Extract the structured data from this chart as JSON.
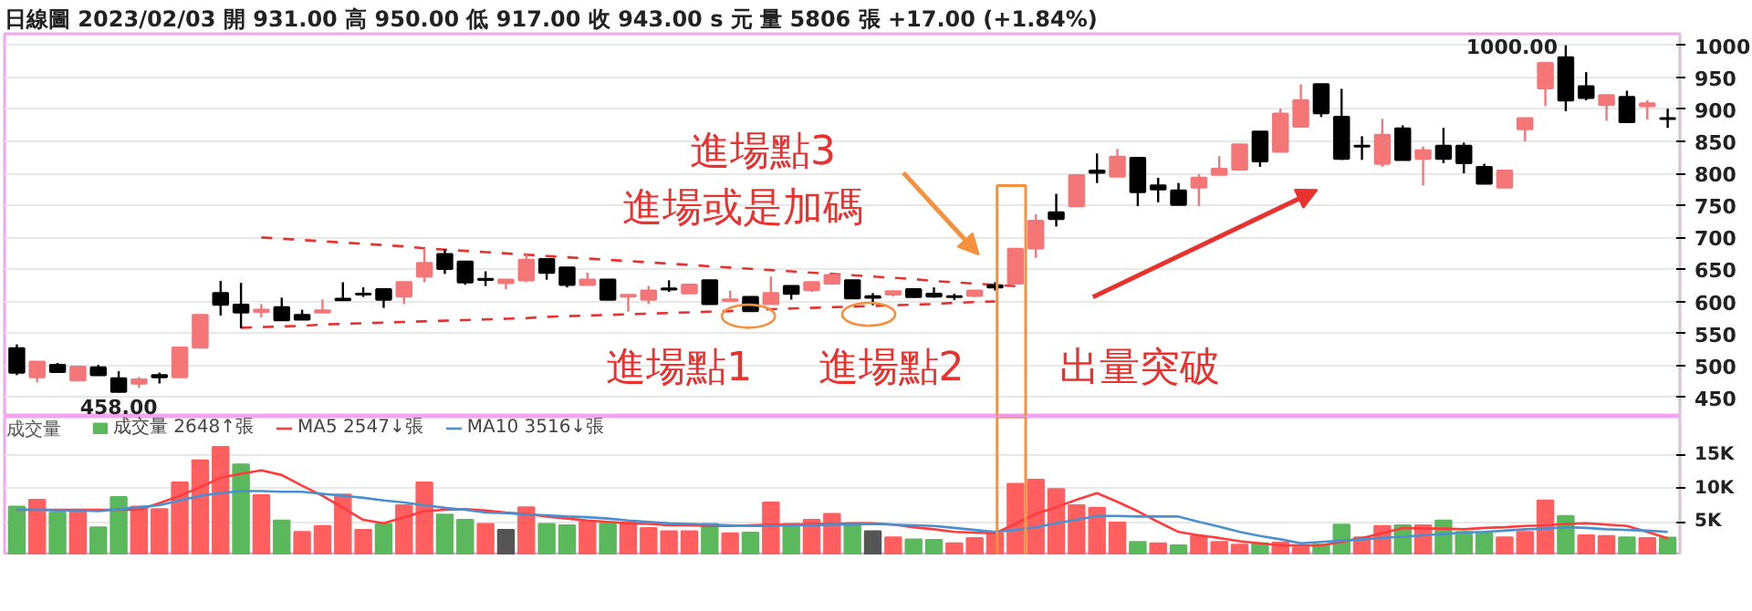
{
  "chart_data": [
    {
      "type": "candlestick",
      "title": "日線圖  2023/02/03  開 931.00  高 950.00  低 917.00  收 943.00 s 元  量 5806 張  +17.00 (+1.84%)",
      "categories": [
        null,
        null,
        null,
        null,
        null,
        null,
        null,
        null,
        null,
        null,
        null,
        null,
        null,
        null,
        null,
        null,
        null,
        null,
        null,
        null,
        null,
        null,
        null,
        null,
        null,
        null,
        null,
        null,
        null,
        null,
        null,
        null,
        null,
        null,
        null,
        null,
        null,
        null,
        null,
        null,
        null,
        null,
        null,
        null,
        null,
        null,
        null,
        null,
        null,
        null,
        null,
        null,
        null,
        null,
        null,
        null,
        null,
        null,
        null,
        null,
        null,
        null,
        null,
        null,
        null,
        null,
        null,
        null,
        null,
        null,
        null,
        null,
        null,
        null,
        null,
        null,
        null,
        null,
        null,
        null,
        null,
        null
      ],
      "ohlc": [
        [
          527,
          533,
          485,
          489
        ],
        [
          482,
          506,
          474,
          506
        ],
        [
          501,
          504,
          489,
          490
        ],
        [
          477,
          498,
          476,
          498
        ],
        [
          497,
          501,
          484,
          485
        ],
        [
          480,
          491,
          458,
          459
        ],
        [
          472,
          482,
          465,
          478
        ],
        [
          485,
          489,
          472,
          482
        ],
        [
          482,
          528,
          482,
          528
        ],
        [
          528,
          579,
          527,
          579
        ],
        [
          613,
          632,
          578,
          595
        ],
        [
          595,
          629,
          558,
          583
        ],
        [
          584,
          596,
          575,
          587
        ],
        [
          591,
          606,
          571,
          571
        ],
        [
          579,
          587,
          572,
          572
        ],
        [
          583,
          603,
          583,
          586
        ],
        [
          604,
          630,
          602,
          602
        ],
        [
          612,
          622,
          607,
          611
        ],
        [
          619,
          619,
          590,
          603
        ],
        [
          608,
          630,
          596,
          630
        ],
        [
          639,
          683,
          630,
          660
        ],
        [
          674,
          681,
          643,
          651
        ],
        [
          662,
          662,
          626,
          630
        ],
        [
          635,
          647,
          624,
          634
        ],
        [
          629,
          634,
          619,
          634
        ],
        [
          633,
          674,
          630,
          665
        ],
        [
          666,
          666,
          634,
          645
        ],
        [
          653,
          653,
          622,
          626
        ],
        [
          626,
          645,
          626,
          634
        ],
        [
          634,
          634,
          602,
          603
        ],
        [
          608,
          610,
          584,
          610
        ],
        [
          603,
          624,
          596,
          617
        ],
        [
          620,
          633,
          615,
          619
        ],
        [
          613,
          628,
          613,
          626
        ],
        [
          633,
          633,
          596,
          596
        ],
        [
          601,
          617,
          600,
          603
        ],
        [
          607,
          607,
          584,
          585
        ],
        [
          596,
          639,
          596,
          613
        ],
        [
          624,
          624,
          603,
          612
        ],
        [
          618,
          630,
          615,
          630
        ],
        [
          628,
          641,
          626,
          641
        ],
        [
          633,
          633,
          605,
          605
        ],
        [
          608,
          613,
          594,
          606
        ],
        [
          611,
          616,
          608,
          616
        ],
        [
          619,
          619,
          606,
          607
        ],
        [
          612,
          622,
          606,
          608
        ],
        [
          608,
          612,
          602,
          607
        ],
        [
          609,
          617,
          607,
          617
        ],
        [
          625,
          630,
          617,
          622
        ],
        [
          628,
          682,
          628,
          682
        ],
        [
          683,
          736,
          668,
          726
        ],
        [
          739,
          768,
          717,
          729
        ],
        [
          749,
          797,
          749,
          797
        ],
        [
          804,
          831,
          785,
          801
        ],
        [
          795,
          838,
          795,
          826
        ],
        [
          824,
          824,
          749,
          771
        ],
        [
          781,
          793,
          755,
          775
        ],
        [
          773,
          785,
          751,
          751
        ],
        [
          778,
          799,
          749,
          793
        ],
        [
          798,
          827,
          798,
          807
        ],
        [
          806,
          845,
          806,
          845
        ],
        [
          865,
          865,
          810,
          819
        ],
        [
          834,
          901,
          834,
          893
        ],
        [
          873,
          939,
          873,
          914
        ],
        [
          939,
          939,
          888,
          894
        ],
        [
          888,
          932,
          821,
          823
        ],
        [
          843,
          858,
          821,
          842
        ],
        [
          815,
          885,
          810,
          860
        ],
        [
          870,
          875,
          821,
          821
        ],
        [
          823,
          842,
          781,
          836
        ],
        [
          843,
          871,
          816,
          823
        ],
        [
          843,
          848,
          800,
          816
        ],
        [
          810,
          815,
          784,
          784
        ],
        [
          778,
          804,
          778,
          804
        ],
        [
          869,
          886,
          850,
          886
        ],
        [
          933,
          972,
          905,
          972
        ],
        [
          981,
          1000,
          897,
          914
        ],
        [
          936,
          958,
          914,
          918
        ],
        [
          907,
          922,
          882,
          922
        ],
        [
          919,
          929,
          880,
          880
        ],
        [
          905,
          914,
          884,
          909
        ],
        [
          886,
          901,
          871,
          885
        ]
      ],
      "colors": [
        "#000000",
        "#f47676",
        "#000000",
        "#f47676",
        "#000000",
        "#000000",
        "#f47676",
        "#000000",
        "#f47676",
        "#f47676",
        "#000000",
        "#000000",
        "#f47676",
        "#000000",
        "#000000",
        "#f47676",
        "#000000",
        "#000000",
        "#000000",
        "#f47676",
        "#f47676",
        "#000000",
        "#000000",
        "#000000",
        "#f47676",
        "#f47676",
        "#000000",
        "#000000",
        "#f47676",
        "#000000",
        "#f47676",
        "#f47676",
        "#000000",
        "#f47676",
        "#000000",
        "#f47676",
        "#000000",
        "#f47676",
        "#000000",
        "#f47676",
        "#f47676",
        "#000000",
        "#000000",
        "#f47676",
        "#000000",
        "#000000",
        "#000000",
        "#f47676",
        "#000000",
        "#f47676",
        "#f47676",
        "#000000",
        "#f47676",
        "#000000",
        "#f47676",
        "#000000",
        "#000000",
        "#000000",
        "#f47676",
        "#f47676",
        "#f47676",
        "#000000",
        "#f47676",
        "#f47676",
        "#000000",
        "#000000",
        "#000000",
        "#f47676",
        "#000000",
        "#f47676",
        "#000000",
        "#000000",
        "#000000",
        "#f47676",
        "#f47676",
        "#f47676",
        "#000000",
        "#000000",
        "#f47676",
        "#000000",
        "#f47676",
        "#000000"
      ],
      "ylim": [
        420,
        1018
      ],
      "yticks": [
        450,
        500,
        550,
        600,
        650,
        700,
        750,
        800,
        850,
        900,
        950,
        1000
      ],
      "grid": "y",
      "series": [
        {
          "type": "line",
          "color": "#e8322e",
          "line_style": "dashed",
          "values": [
            null,
            null,
            null,
            null,
            null,
            null,
            null,
            null,
            null,
            null,
            null,
            null,
            700,
            698,
            696,
            694,
            692,
            690,
            688,
            686,
            683,
            681,
            679,
            677,
            675,
            673,
            671,
            669,
            667,
            665,
            663,
            661,
            659,
            657,
            655,
            653,
            651,
            649,
            647,
            645,
            643,
            641,
            639,
            637,
            635,
            632,
            630,
            628,
            626,
            624,
            null,
            null,
            null,
            null,
            null,
            null,
            null,
            null,
            null,
            null,
            null,
            null,
            null,
            null,
            null,
            null,
            null,
            null,
            null,
            null,
            null,
            null,
            null,
            null,
            null,
            null,
            null,
            null,
            null,
            null,
            null,
            null
          ]
        },
        {
          "type": "line",
          "color": "#e8322e",
          "line_style": "dashed",
          "values": [
            null,
            null,
            null,
            null,
            null,
            null,
            null,
            null,
            null,
            null,
            null,
            559,
            560,
            561,
            562,
            564,
            565,
            566,
            567,
            568,
            569,
            570,
            571,
            572,
            573,
            574,
            576,
            577,
            578,
            579,
            580,
            581,
            582,
            583,
            584,
            585,
            587,
            588,
            589,
            590,
            591,
            592,
            593,
            594,
            595,
            596,
            598,
            599,
            600,
            null,
            null,
            null,
            null,
            null,
            null,
            null,
            null,
            null,
            null,
            null,
            null,
            null,
            null,
            null,
            null,
            null,
            null,
            null,
            null,
            null,
            null,
            null,
            null,
            null,
            null,
            null,
            null,
            null,
            null,
            null,
            null,
            null
          ]
        }
      ],
      "annotations": [
        {
          "text": "458.00",
          "y": 458
        },
        "1000.00",
        "進場點3",
        "進場或是加碼",
        "進場點1",
        "進場點2",
        "出量突破"
      ]
    },
    {
      "type": "bar",
      "title": "成交量",
      "categories": [
        null,
        null,
        null,
        null,
        null,
        null,
        null,
        null,
        null,
        null,
        null,
        null,
        null,
        null,
        null,
        null,
        null,
        null,
        null,
        null,
        null,
        null,
        null,
        null,
        null,
        null,
        null,
        null,
        null,
        null,
        null,
        null,
        null,
        null,
        null,
        null,
        null,
        null,
        null,
        null,
        null,
        null,
        null,
        null,
        null,
        null,
        null,
        null,
        null,
        null,
        null,
        null,
        null,
        null,
        null,
        null,
        null,
        null,
        null,
        null,
        null,
        null,
        null,
        null,
        null,
        null,
        null,
        null,
        null,
        null,
        null,
        null,
        null,
        null,
        null,
        null,
        null,
        null,
        null,
        null,
        null,
        null
      ],
      "series": [
        {
          "name": "成交量 2648↑張",
          "type": "bar",
          "values": [
            7300,
            8300,
            6400,
            6600,
            4200,
            8700,
            7300,
            6900,
            10900,
            14200,
            16200,
            13600,
            9000,
            5200,
            3500,
            4400,
            9100,
            3800,
            4700,
            7500,
            10900,
            6100,
            5300,
            4700,
            3800,
            7200,
            4700,
            4500,
            5000,
            4800,
            4900,
            4100,
            3600,
            3600,
            4700,
            3300,
            3400,
            7900,
            4700,
            5300,
            6200,
            4700,
            3600,
            2700,
            2400,
            2300,
            1800,
            2600,
            3300,
            10700,
            11300,
            9900,
            7500,
            7100,
            4900,
            2000,
            1800,
            1500,
            2900,
            2000,
            1600,
            1800,
            1900,
            1200,
            1600,
            4600,
            2700,
            4400,
            4500,
            4500,
            5200,
            3500,
            3300,
            2700,
            3500,
            8200,
            5900,
            3000,
            2900,
            2700,
            2600,
            2648
          ],
          "colors": [
            "#5cb85c",
            "#ff5f5f",
            "#5cb85c",
            "#ff5f5f",
            "#5cb85c",
            "#5cb85c",
            "#ff5f5f",
            "#ff5f5f",
            "#ff5f5f",
            "#ff5f5f",
            "#ff5f5f",
            "#5cb85c",
            "#ff5f5f",
            "#5cb85c",
            "#ff5f5f",
            "#ff5f5f",
            "#ff5f5f",
            "#ff5f5f",
            "#5cb85c",
            "#ff5f5f",
            "#ff5f5f",
            "#5cb85c",
            "#5cb85c",
            "#ff5f5f",
            "#555555",
            "#ff5f5f",
            "#5cb85c",
            "#5cb85c",
            "#ff5f5f",
            "#5cb85c",
            "#ff5f5f",
            "#ff5f5f",
            "#ff5f5f",
            "#ff5f5f",
            "#5cb85c",
            "#ff5f5f",
            "#5cb85c",
            "#ff5f5f",
            "#5cb85c",
            "#ff5f5f",
            "#ff5f5f",
            "#5cb85c",
            "#555555",
            "#ff5f5f",
            "#5cb85c",
            "#5cb85c",
            "#ff5f5f",
            "#ff5f5f",
            "#ff5f5f",
            "#ff5f5f",
            "#ff5f5f",
            "#ff5f5f",
            "#ff5f5f",
            "#ff5f5f",
            "#ff5f5f",
            "#5cb85c",
            "#ff5f5f",
            "#5cb85c",
            "#ff5f5f",
            "#ff5f5f",
            "#ff5f5f",
            "#5cb85c",
            "#ff5f5f",
            "#ff5f5f",
            "#5cb85c",
            "#5cb85c",
            "#ff5f5f",
            "#ff5f5f",
            "#5cb85c",
            "#ff5f5f",
            "#5cb85c",
            "#5cb85c",
            "#5cb85c",
            "#ff5f5f",
            "#ff5f5f",
            "#ff5f5f",
            "#5cb85c",
            "#ff5f5f",
            "#ff5f5f",
            "#5cb85c",
            "#ff5f5f",
            "#5cb85c"
          ]
        },
        {
          "name": "MA5 2547↓張",
          "type": "line",
          "color": "#ff3b3b",
          "values": [
            6800,
            6800,
            6800,
            6800,
            6800,
            6800,
            6800,
            7800,
            8900,
            10200,
            11600,
            12200,
            12700,
            12000,
            10400,
            8900,
            7100,
            5300,
            4800,
            5700,
            6600,
            6800,
            6900,
            6700,
            6400,
            6200,
            5800,
            5500,
            5200,
            5000,
            4800,
            4700,
            4500,
            4500,
            4400,
            4400,
            4500,
            4600,
            4600,
            4700,
            4700,
            4800,
            4800,
            4600,
            4200,
            3900,
            3500,
            3400,
            3300,
            4700,
            6200,
            7200,
            8300,
            9300,
            8000,
            6600,
            5000,
            3500,
            3000,
            2600,
            2100,
            1800,
            1500,
            1500,
            1500,
            2000,
            2600,
            3300,
            4100,
            4000,
            4000,
            3900,
            4100,
            4200,
            4400,
            4500,
            4700,
            4800,
            4600,
            4400,
            3500,
            2547
          ]
        },
        {
          "name": "MA10 3516↓張",
          "type": "line",
          "color": "#4a90d0",
          "values": [
            6800,
            6800,
            6700,
            6700,
            6600,
            6900,
            7200,
            7500,
            8200,
            8900,
            9300,
            9600,
            9600,
            9500,
            9500,
            9200,
            8900,
            8600,
            8200,
            7900,
            7500,
            7100,
            6800,
            6400,
            6300,
            6100,
            6000,
            5800,
            5700,
            5500,
            5200,
            5000,
            4800,
            4700,
            4600,
            4500,
            4400,
            4400,
            4500,
            4500,
            4600,
            4600,
            4700,
            4600,
            4500,
            4400,
            4100,
            3800,
            3500,
            3800,
            4200,
            4800,
            5300,
            5900,
            5900,
            5800,
            5800,
            5800,
            5000,
            4300,
            3500,
            2900,
            2400,
            1800,
            2000,
            2200,
            2400,
            2600,
            2800,
            3000,
            3200,
            3400,
            3500,
            3700,
            3900,
            4000,
            4200,
            4100,
            3900,
            3800,
            3700,
            3516
          ]
        }
      ],
      "ylim": [
        0,
        20700
      ],
      "yticks": [
        {
          "value": 5000,
          "label": "5K"
        },
        {
          "value": 10000,
          "label": "10K"
        },
        {
          "value": 15000,
          "label": "15K"
        }
      ],
      "grid": "y",
      "legend": "top left"
    }
  ]
}
